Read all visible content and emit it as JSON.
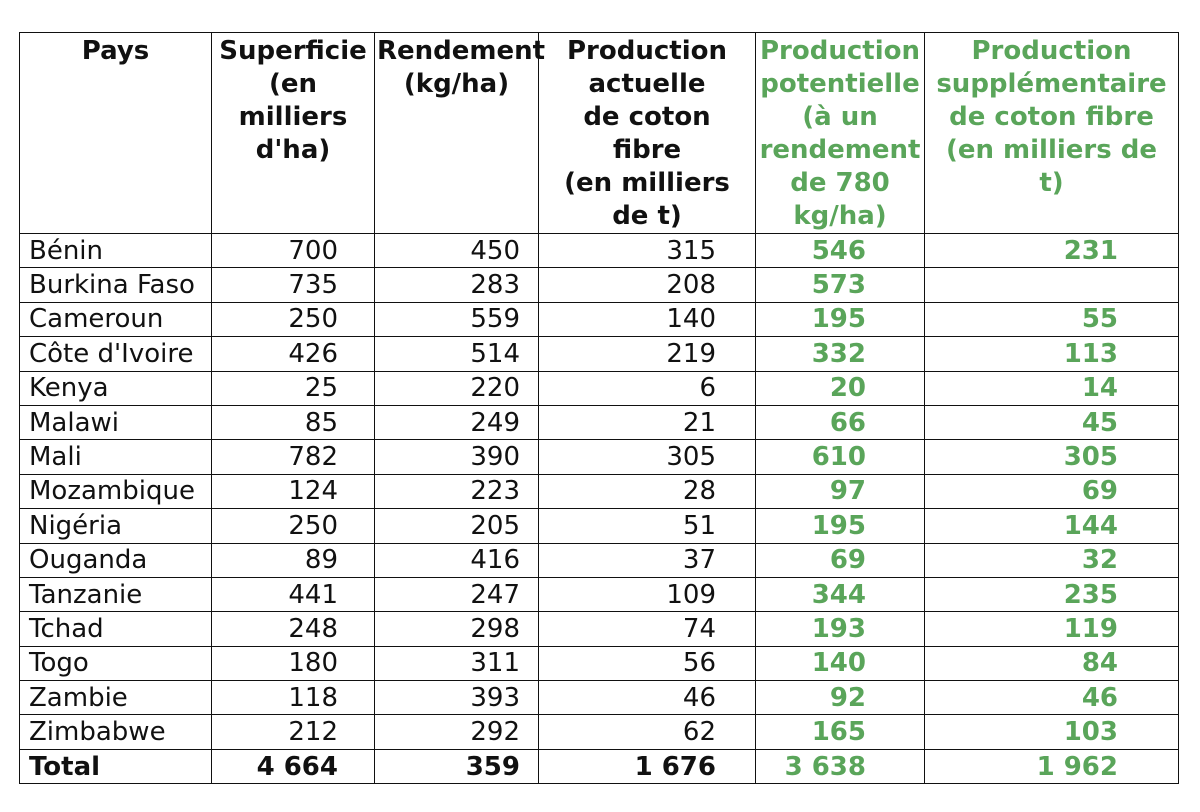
{
  "headers": [
    "Pays",
    "Superficie\n(en\nmilliers\nd'ha)",
    "Rendement\n(kg/ha)",
    "Production\nactuelle\nde coton\nfibre\n(en milliers\nde t)",
    "Production\npotentielle\n(à un\nrendement\nde 780\nkg/ha)",
    "Production\nsupplémentaire\nde coton fibre\n(en milliers de\nt)"
  ],
  "rows": [
    [
      "Bénin",
      "700",
      "450",
      "315",
      "546",
      "231"
    ],
    [
      "Burkina Faso",
      "735",
      "283",
      "208",
      "573",
      ""
    ],
    [
      "Cameroun",
      "250",
      "559",
      "140",
      "195",
      "55"
    ],
    [
      "Côte d'Ivoire",
      "426",
      "514",
      "219",
      "332",
      "113"
    ],
    [
      "Kenya",
      "25",
      "220",
      "6",
      "20",
      "14"
    ],
    [
      "Malawi",
      "85",
      "249",
      "21",
      "66",
      "45"
    ],
    [
      "Mali",
      "782",
      "390",
      "305",
      "610",
      "305"
    ],
    [
      "Mozambique",
      "124",
      "223",
      "28",
      "97",
      "69"
    ],
    [
      "Nigéria",
      "250",
      "205",
      "51",
      "195",
      "144"
    ],
    [
      "Ouganda",
      "89",
      "416",
      "37",
      "69",
      "32"
    ],
    [
      "Tanzanie",
      "441",
      "247",
      "109",
      "344",
      "235"
    ],
    [
      "Tchad",
      "248",
      "298",
      "74",
      "193",
      "119"
    ],
    [
      "Togo",
      "180",
      "311",
      "56",
      "140",
      "84"
    ],
    [
      "Zambie",
      "118",
      "393",
      "46",
      "92",
      "46"
    ],
    [
      "Zimbabwe",
      "212",
      "292",
      "62",
      "165",
      "103"
    ]
  ],
  "total": [
    "Total",
    "4 664",
    "359",
    "1 676",
    "3 638",
    "1 962"
  ],
  "colors": {
    "highlight": "#5aa55a",
    "text": "#111111"
  }
}
